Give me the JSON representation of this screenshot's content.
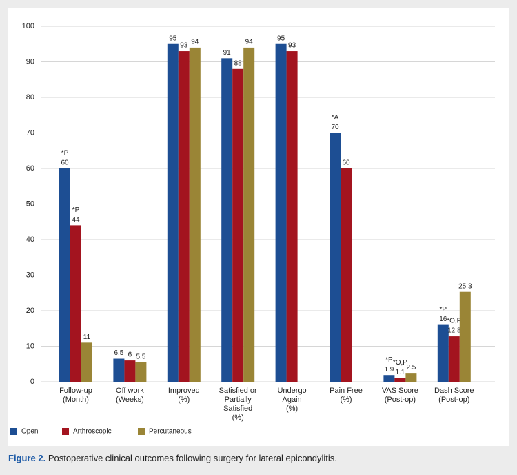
{
  "chart_data": {
    "type": "bar",
    "categories": [
      [
        "Follow-up",
        "(Month)"
      ],
      [
        "Off work",
        "(Weeks)"
      ],
      [
        "Improved",
        "(%)"
      ],
      [
        "Satisfied or",
        "Partially",
        "Satisfied",
        "(%)"
      ],
      [
        "Undergo",
        "Again",
        "(%)"
      ],
      [
        "Pain Free",
        "(%)"
      ],
      [
        "VAS Score",
        "(Post-op)"
      ],
      [
        "Dash Score",
        "(Post-op)"
      ]
    ],
    "series": [
      {
        "name": "Open",
        "color": "#1d4e93",
        "values": [
          60,
          6.5,
          95,
          91,
          95,
          70,
          1.9,
          16
        ],
        "annotations": [
          "*P",
          null,
          null,
          null,
          null,
          "*A",
          "*P",
          "*P"
        ]
      },
      {
        "name": "Arthroscopic",
        "color": "#a3141f",
        "values": [
          44,
          6,
          93,
          88,
          93,
          60,
          1.1,
          12.8
        ],
        "annotations": [
          "*P",
          null,
          null,
          null,
          null,
          null,
          "*O,P",
          "*O,P"
        ]
      },
      {
        "name": "Percutaneous",
        "color": "#9a8536",
        "values": [
          11,
          5.5,
          94,
          94,
          null,
          null,
          2.5,
          25.3
        ],
        "annotations": [
          null,
          null,
          null,
          null,
          null,
          null,
          null,
          null
        ]
      }
    ],
    "ylim": [
      0,
      100
    ],
    "yticks": [
      0,
      10,
      20,
      30,
      40,
      50,
      60,
      70,
      80,
      90,
      100
    ],
    "grid": true,
    "legend": "bottom-left",
    "caption_label": "Figure 2.",
    "caption": "Postoperative clinical outcomes following surgery for lateral epicondylitis."
  }
}
